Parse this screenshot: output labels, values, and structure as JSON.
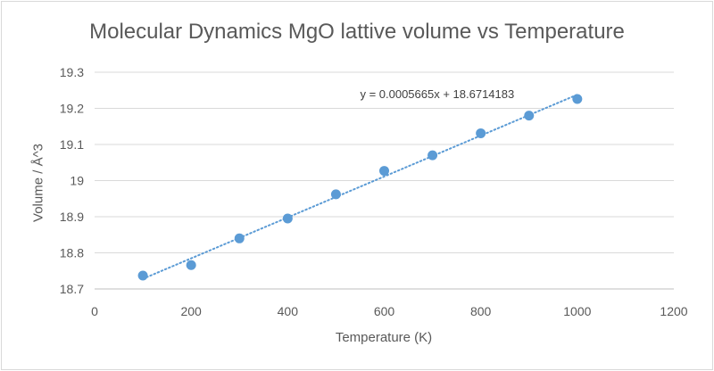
{
  "chart_data": {
    "type": "scatter",
    "title": "Molecular Dynamics MgO lattive volume vs Temperature",
    "xlabel": "Temperature (K)",
    "ylabel": "Volume / Å^3",
    "xlim": [
      0,
      1200
    ],
    "ylim": [
      18.7,
      19.3
    ],
    "x_ticks": [
      0,
      200,
      400,
      600,
      800,
      1000,
      1200
    ],
    "y_ticks": [
      18.7,
      18.8,
      18.9,
      19.0,
      19.1,
      19.2,
      19.3
    ],
    "x_tick_labels": [
      "0",
      "200",
      "400",
      "600",
      "800",
      "1000",
      "1200"
    ],
    "y_tick_labels": [
      "18.7",
      "18.8",
      "18.9",
      "19",
      "19.1",
      "19.2",
      "19.3"
    ],
    "grid": {
      "horizontal": true,
      "vertical": false
    },
    "legend": "none",
    "series": [
      {
        "x": [
          100,
          200,
          300,
          400,
          500,
          600,
          700,
          800,
          900,
          1000
        ],
        "y": [
          18.737,
          18.766,
          18.84,
          18.895,
          18.962,
          19.027,
          19.07,
          19.131,
          19.18,
          19.226
        ],
        "color": "#5b9bd5"
      }
    ],
    "trendline": {
      "kind": "linear",
      "style": "dotted",
      "slope": 0.0005665,
      "intercept": 18.6714183,
      "x_range": [
        100,
        1000
      ],
      "equation": "y = 0.0005665x + 18.6714183",
      "color": "#5b9bd5"
    }
  }
}
